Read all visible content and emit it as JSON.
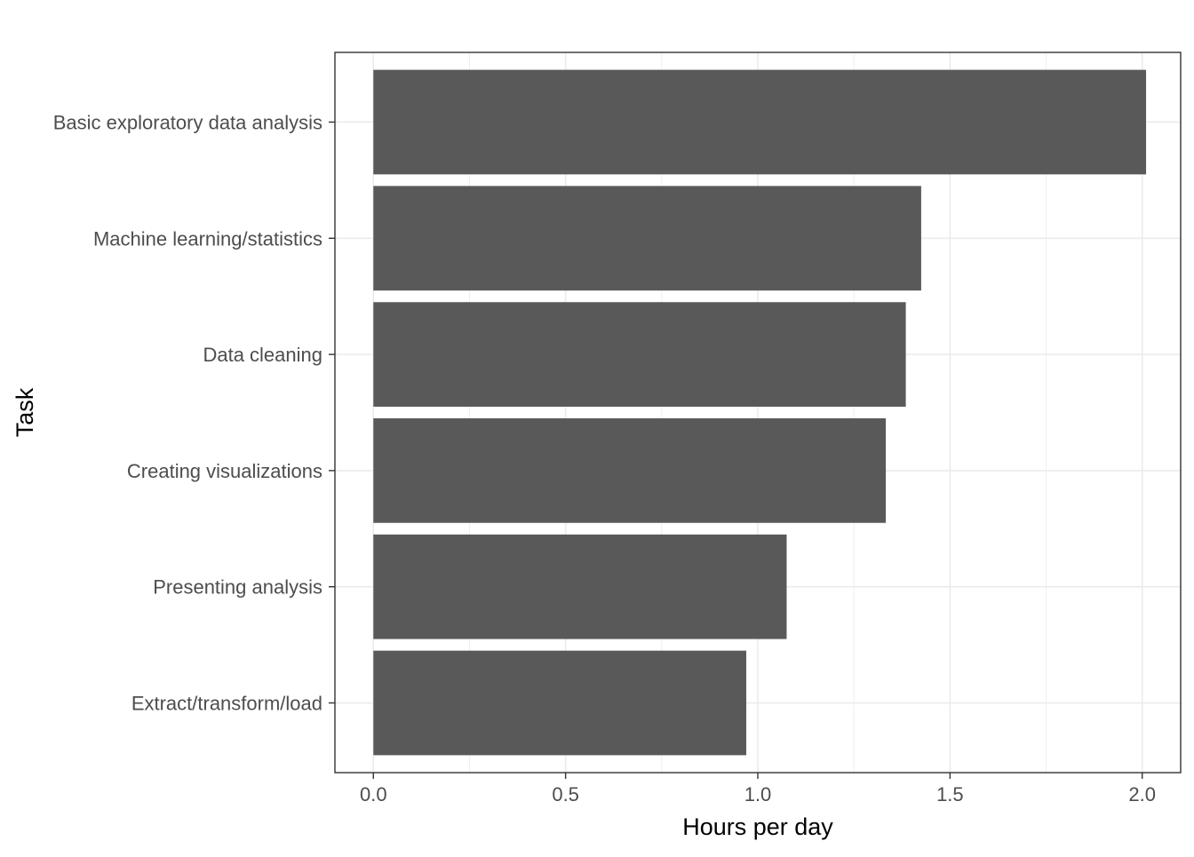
{
  "chart_data": {
    "type": "bar",
    "orientation": "horizontal",
    "categories": [
      "Basic exploratory data analysis",
      "Machine learning/statistics",
      "Data cleaning",
      "Creating visualizations",
      "Presenting analysis",
      "Extract/transform/load"
    ],
    "values": [
      2.01,
      1.425,
      1.385,
      1.333,
      1.075,
      0.97
    ],
    "xlabel": "Hours per day",
    "ylabel": "Task",
    "xlim": [
      -0.1,
      2.1
    ],
    "xticks": [
      0.0,
      0.5,
      1.0,
      1.5,
      2.0
    ],
    "xtick_labels": [
      "0.0",
      "0.5",
      "1.0",
      "1.5",
      "2.0"
    ],
    "grid": true,
    "legend": "none",
    "colors": {
      "bar": "#595959",
      "grid": "#ebebeb",
      "panel_border": "#333333",
      "background": "#ffffff"
    }
  }
}
